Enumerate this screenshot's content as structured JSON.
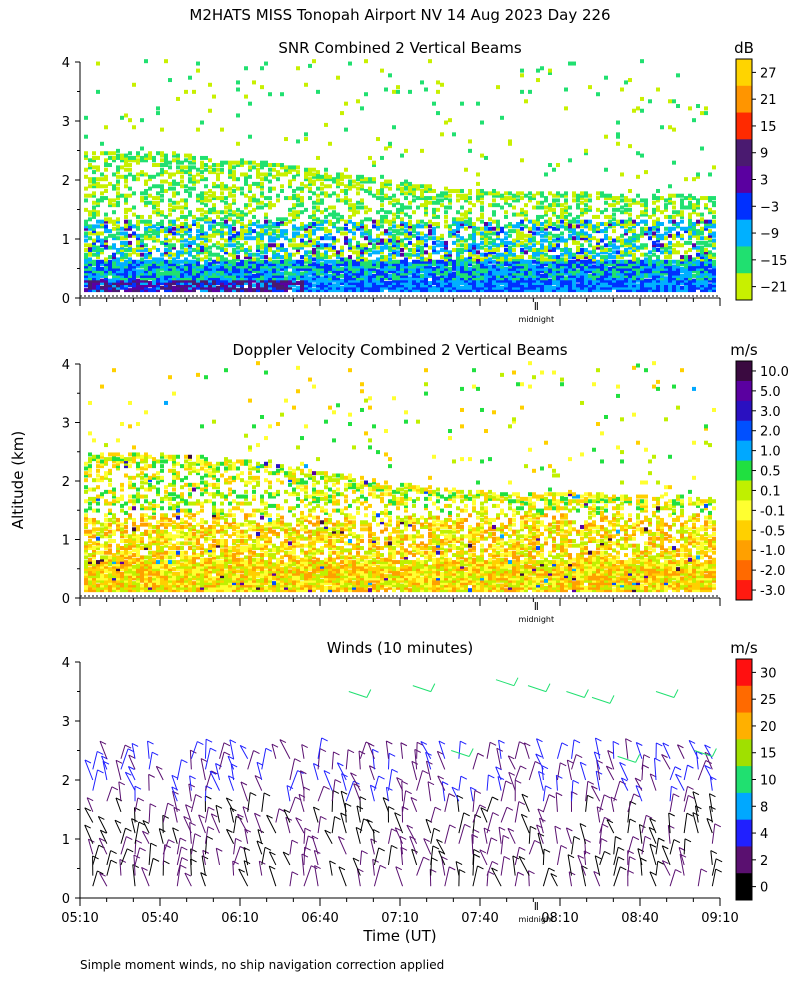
{
  "header": {
    "title": "M2HATS MISS Tonopah Airport NV  14 Aug 2023 Day 226"
  },
  "shared": {
    "y_label": "Altitude (km)",
    "x_label": "Time (UT)",
    "midnight_label": "midnight",
    "x_tick_labels": [
      "05:10",
      "05:40",
      "06:10",
      "06:40",
      "07:10",
      "07:40",
      "08:10",
      "08:40",
      "09:10"
    ],
    "y_tick_labels": [
      "0",
      "1",
      "2",
      "3",
      "4"
    ],
    "ylim": [
      0,
      4
    ]
  },
  "footer": {
    "note": "Simple moment winds, no ship navigation correction applied"
  },
  "chart_data": [
    {
      "type": "heatmap",
      "title": "SNR Combined 2 Vertical Beams",
      "units": "dB",
      "ylabel": "Altitude (km)",
      "xlabel": "Time (UT)",
      "ylim": [
        0,
        4
      ],
      "colorbar_labels": [
        "27",
        "21",
        "15",
        "9",
        "3",
        "−3",
        "−9",
        "−15",
        "−21"
      ],
      "colorbar_colors": [
        "#ffd400",
        "#ff9500",
        "#ff2a00",
        "#4a1a70",
        "#5a00a0",
        "#0030ff",
        "#00b0ff",
        "#20e070",
        "#c8f000"
      ]
    },
    {
      "type": "heatmap",
      "title": "Doppler Velocity Combined 2 Vertical Beams",
      "units": "m/s",
      "ylabel": "Altitude (km)",
      "xlabel": "Time (UT)",
      "ylim": [
        0,
        4
      ],
      "colorbar_labels": [
        "10.0",
        "5.0",
        "3.0",
        "2.0",
        "1.0",
        "0.5",
        "0.1",
        "-0.1",
        "-0.5",
        "-1.0",
        "-2.0",
        "-3.0"
      ],
      "colorbar_colors": [
        "#3a0a40",
        "#5a00a0",
        "#2a10c0",
        "#0050ff",
        "#00a8ff",
        "#20e040",
        "#c0f000",
        "#ffff30",
        "#ffd000",
        "#ffa000",
        "#ff6a00",
        "#ff1a10"
      ]
    },
    {
      "type": "scatter",
      "title": "Winds (10 minutes)",
      "units": "m/s",
      "ylabel": "Altitude (km)",
      "xlabel": "Time (UT)",
      "ylim": [
        0,
        4
      ],
      "colorbar_labels": [
        "30",
        "25",
        "20",
        "15",
        "10",
        "8",
        "4",
        "2",
        "0"
      ],
      "colorbar_colors": [
        "#ff1010",
        "#ff6a00",
        "#ffb000",
        "#a0e000",
        "#20e070",
        "#00a8ff",
        "#2020ff",
        "#5a1070",
        "#000000"
      ]
    }
  ]
}
